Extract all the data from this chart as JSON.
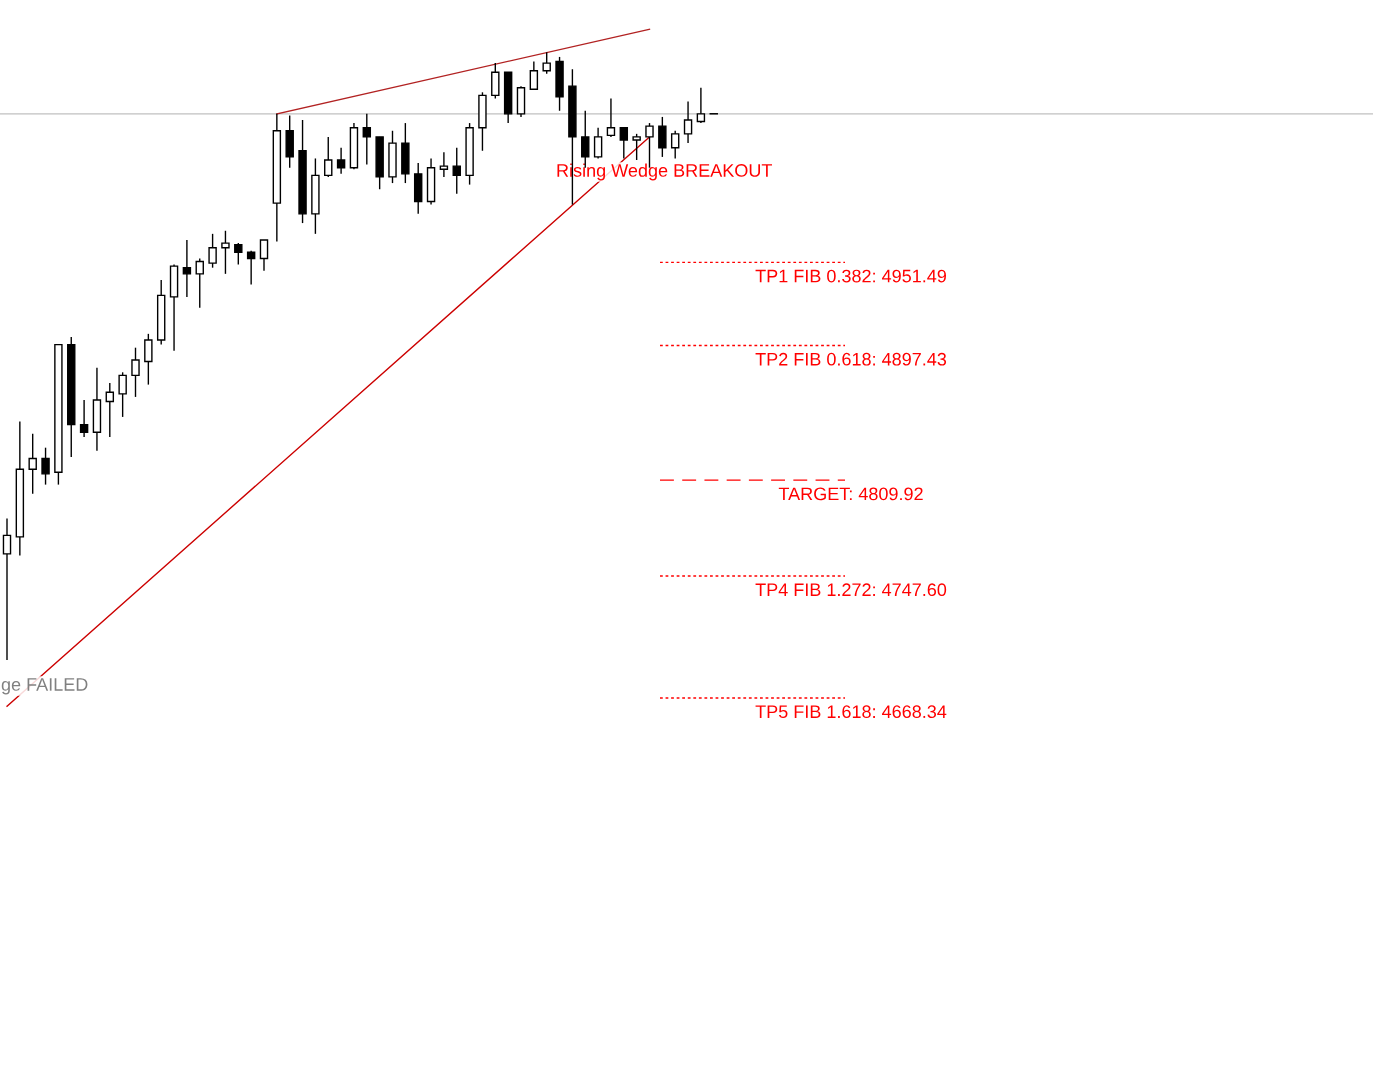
{
  "chart_data": {
    "type": "candlestick",
    "categories": [
      null,
      null,
      null,
      null,
      null,
      null,
      null,
      null,
      null,
      null,
      null,
      null,
      null,
      null,
      null,
      null,
      null,
      null,
      null,
      null,
      null,
      null,
      null,
      null,
      null,
      null,
      null,
      null,
      null,
      null,
      null,
      null,
      null,
      null,
      null,
      null,
      null,
      null,
      null,
      null,
      null,
      null,
      null,
      null,
      null,
      null,
      null,
      null,
      null,
      null,
      null,
      null,
      null,
      null,
      null,
      null
    ],
    "ohlc": [
      [
        4762,
        4785,
        4693,
        4774
      ],
      [
        4773,
        4848,
        4761,
        4817
      ],
      [
        4817,
        4840,
        4801,
        4824
      ],
      [
        4824,
        4831,
        4807,
        4814
      ],
      [
        4815,
        4898,
        4807,
        4898
      ],
      [
        4898,
        4903,
        4825,
        4846
      ],
      [
        4846,
        4862,
        4838,
        4841
      ],
      [
        4841,
        4883,
        4829,
        4862
      ],
      [
        4861,
        4873,
        4838,
        4867
      ],
      [
        4866,
        4880,
        4851,
        4878
      ],
      [
        4878,
        4896,
        4864,
        4888
      ],
      [
        4887,
        4905,
        4872,
        4901
      ],
      [
        4901,
        4940,
        4898,
        4930
      ],
      [
        4929,
        4950,
        4894,
        4949
      ],
      [
        4948,
        4966,
        4929,
        4944
      ],
      [
        4944,
        4954,
        4922,
        4952
      ],
      [
        4951,
        4970,
        4948,
        4961
      ],
      [
        4961,
        4972,
        4944,
        4964
      ],
      [
        4963,
        4964,
        4950,
        4958
      ],
      [
        4958,
        4959,
        4937,
        4954
      ],
      [
        4954,
        4966,
        4946,
        4966
      ],
      [
        4990,
        5048,
        4965,
        5037
      ],
      [
        5037,
        5047,
        5013,
        5020
      ],
      [
        5024,
        5044,
        4977,
        4983
      ],
      [
        4983,
        5019,
        4970,
        5008
      ],
      [
        5008,
        5033,
        5007,
        5018
      ],
      [
        5018,
        5026,
        5009,
        5013
      ],
      [
        5013,
        5042,
        5012,
        5039
      ],
      [
        5039,
        5048,
        5015,
        5033
      ],
      [
        5033,
        5033,
        4999,
        5007
      ],
      [
        5007,
        5037,
        5003,
        5029
      ],
      [
        5029,
        5042,
        5003,
        5009
      ],
      [
        5009,
        5016,
        4983,
        4991
      ],
      [
        4991,
        5019,
        4989,
        5013
      ],
      [
        5012,
        5023,
        5007,
        5014
      ],
      [
        5014,
        5026,
        4996,
        5008
      ],
      [
        5008,
        5042,
        5002,
        5039
      ],
      [
        5039,
        5062,
        5024,
        5060
      ],
      [
        5060,
        5081,
        5058,
        5075
      ],
      [
        5075,
        5075,
        5042,
        5048
      ],
      [
        5048,
        5066,
        5046,
        5065
      ],
      [
        5064,
        5082,
        5064,
        5076
      ],
      [
        5076,
        5088,
        5074,
        5081
      ],
      [
        5082,
        5085,
        5050,
        5059
      ],
      [
        5066,
        5077,
        4989,
        5033
      ],
      [
        5033,
        5050,
        5013,
        5020
      ],
      [
        5020,
        5039,
        5019,
        5033
      ],
      [
        5034,
        5058,
        5033,
        5039
      ],
      [
        5039,
        5039,
        5019,
        5031
      ],
      [
        5031,
        5035,
        5018,
        5033
      ],
      [
        5033,
        5042,
        5013,
        5040
      ],
      [
        5040,
        5046,
        5020,
        5026
      ],
      [
        5026,
        5037,
        5019,
        5035
      ],
      [
        5035,
        5056,
        5029,
        5044
      ],
      [
        5043,
        5065,
        5042,
        5048
      ],
      [
        5048,
        5048,
        5048,
        5048
      ]
    ],
    "series": [
      {
        "type": "line",
        "color": "#b22222",
        "values": [
          null,
          null,
          null,
          null,
          null,
          null,
          null,
          null,
          null,
          null,
          null,
          null,
          null,
          null,
          null,
          null,
          null,
          null,
          null,
          null,
          null,
          5048,
          null,
          null,
          null,
          null,
          null,
          null,
          null,
          null,
          null,
          null,
          null,
          null,
          null,
          null,
          null,
          null,
          null,
          null,
          null,
          null,
          null,
          null,
          null,
          null,
          null,
          null,
          null,
          null,
          5103,
          null,
          null,
          null,
          null,
          null
        ]
      },
      {
        "type": "line",
        "color": "#cc0000",
        "values": [
          4663,
          null,
          null,
          null,
          null,
          null,
          null,
          null,
          null,
          null,
          null,
          null,
          null,
          null,
          null,
          null,
          null,
          null,
          null,
          null,
          null,
          null,
          null,
          null,
          null,
          null,
          null,
          null,
          null,
          null,
          null,
          null,
          null,
          null,
          null,
          null,
          null,
          null,
          null,
          null,
          null,
          null,
          null,
          null,
          null,
          null,
          null,
          null,
          null,
          null,
          5033,
          null,
          null,
          null,
          null,
          null
        ]
      }
    ],
    "ylim": [
      4420,
      5122
    ],
    "grid": false,
    "ref_lines": [
      {
        "axis": "y",
        "value": 5048,
        "label": null,
        "color": "#c0c0c0",
        "line_style": "solid"
      },
      {
        "axis": "y",
        "value": 4951.49,
        "label": "TP1 FIB 0.382: 4951.49",
        "color": "#ff0000",
        "line_style": "dotted"
      },
      {
        "axis": "y",
        "value": 4897.43,
        "label": "TP2 FIB 0.618: 4897.43",
        "color": "#ff0000",
        "line_style": "dotted"
      },
      {
        "axis": "y",
        "value": 4809.92,
        "label": "TARGET: 4809.92",
        "color": "#ff0000",
        "line_style": "dashed"
      },
      {
        "axis": "y",
        "value": 4747.6,
        "label": "TP4 FIB 1.272: 4747.60",
        "color": "#ff0000",
        "line_style": "dotted"
      },
      {
        "axis": "y",
        "value": 4668.34,
        "label": "TP5 FIB 1.618: 4668.34",
        "color": "#ff0000",
        "line_style": "dotted"
      }
    ],
    "annotations": [
      "Rising Wedge BREAKOUT",
      "ge FAILED"
    ]
  }
}
